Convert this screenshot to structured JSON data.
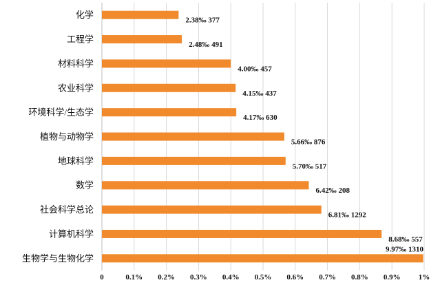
{
  "chart_data": {
    "type": "bar",
    "orientation": "horizontal",
    "title": "",
    "xlabel": "",
    "ylabel": "",
    "xlim": [
      0,
      1.0
    ],
    "bar_color": "#F08A2C",
    "categories": [
      "化学",
      "工程学",
      "材料科学",
      "农业科学",
      "环境科学/生态学",
      "植物与动物学",
      "地球科学",
      "数学",
      "社会科学总论",
      "计算机科学",
      "生物学与生物化学"
    ],
    "values": [
      0.238,
      0.248,
      0.4,
      0.415,
      0.417,
      0.566,
      0.57,
      0.642,
      0.681,
      0.868,
      0.997
    ],
    "counts": [
      377,
      491,
      457,
      437,
      630,
      876,
      517,
      208,
      1292,
      557,
      1310
    ],
    "data_labels": [
      "2.38‰ 377",
      "2.48‰ 491",
      "4.00‰ 457",
      "4.15‰ 437",
      "4.17‰ 630",
      "5.66‰ 876",
      "5.70‰ 517",
      "6.42‰ 208",
      "6.81‰ 1292",
      "8.68‰ 557",
      "9.97‰ 1310"
    ],
    "x_ticks": [
      0,
      0.1,
      0.2,
      0.3,
      0.4,
      0.5,
      0.6,
      0.7,
      0.8,
      0.9,
      1.0
    ],
    "x_tick_labels": [
      "0",
      "0.1%",
      "0.2%",
      "0.3%",
      "0.4%",
      "0.5%",
      "0.6%",
      "0.7%",
      "0.8%",
      "0.9%",
      "1%"
    ],
    "grid": "vertical"
  }
}
